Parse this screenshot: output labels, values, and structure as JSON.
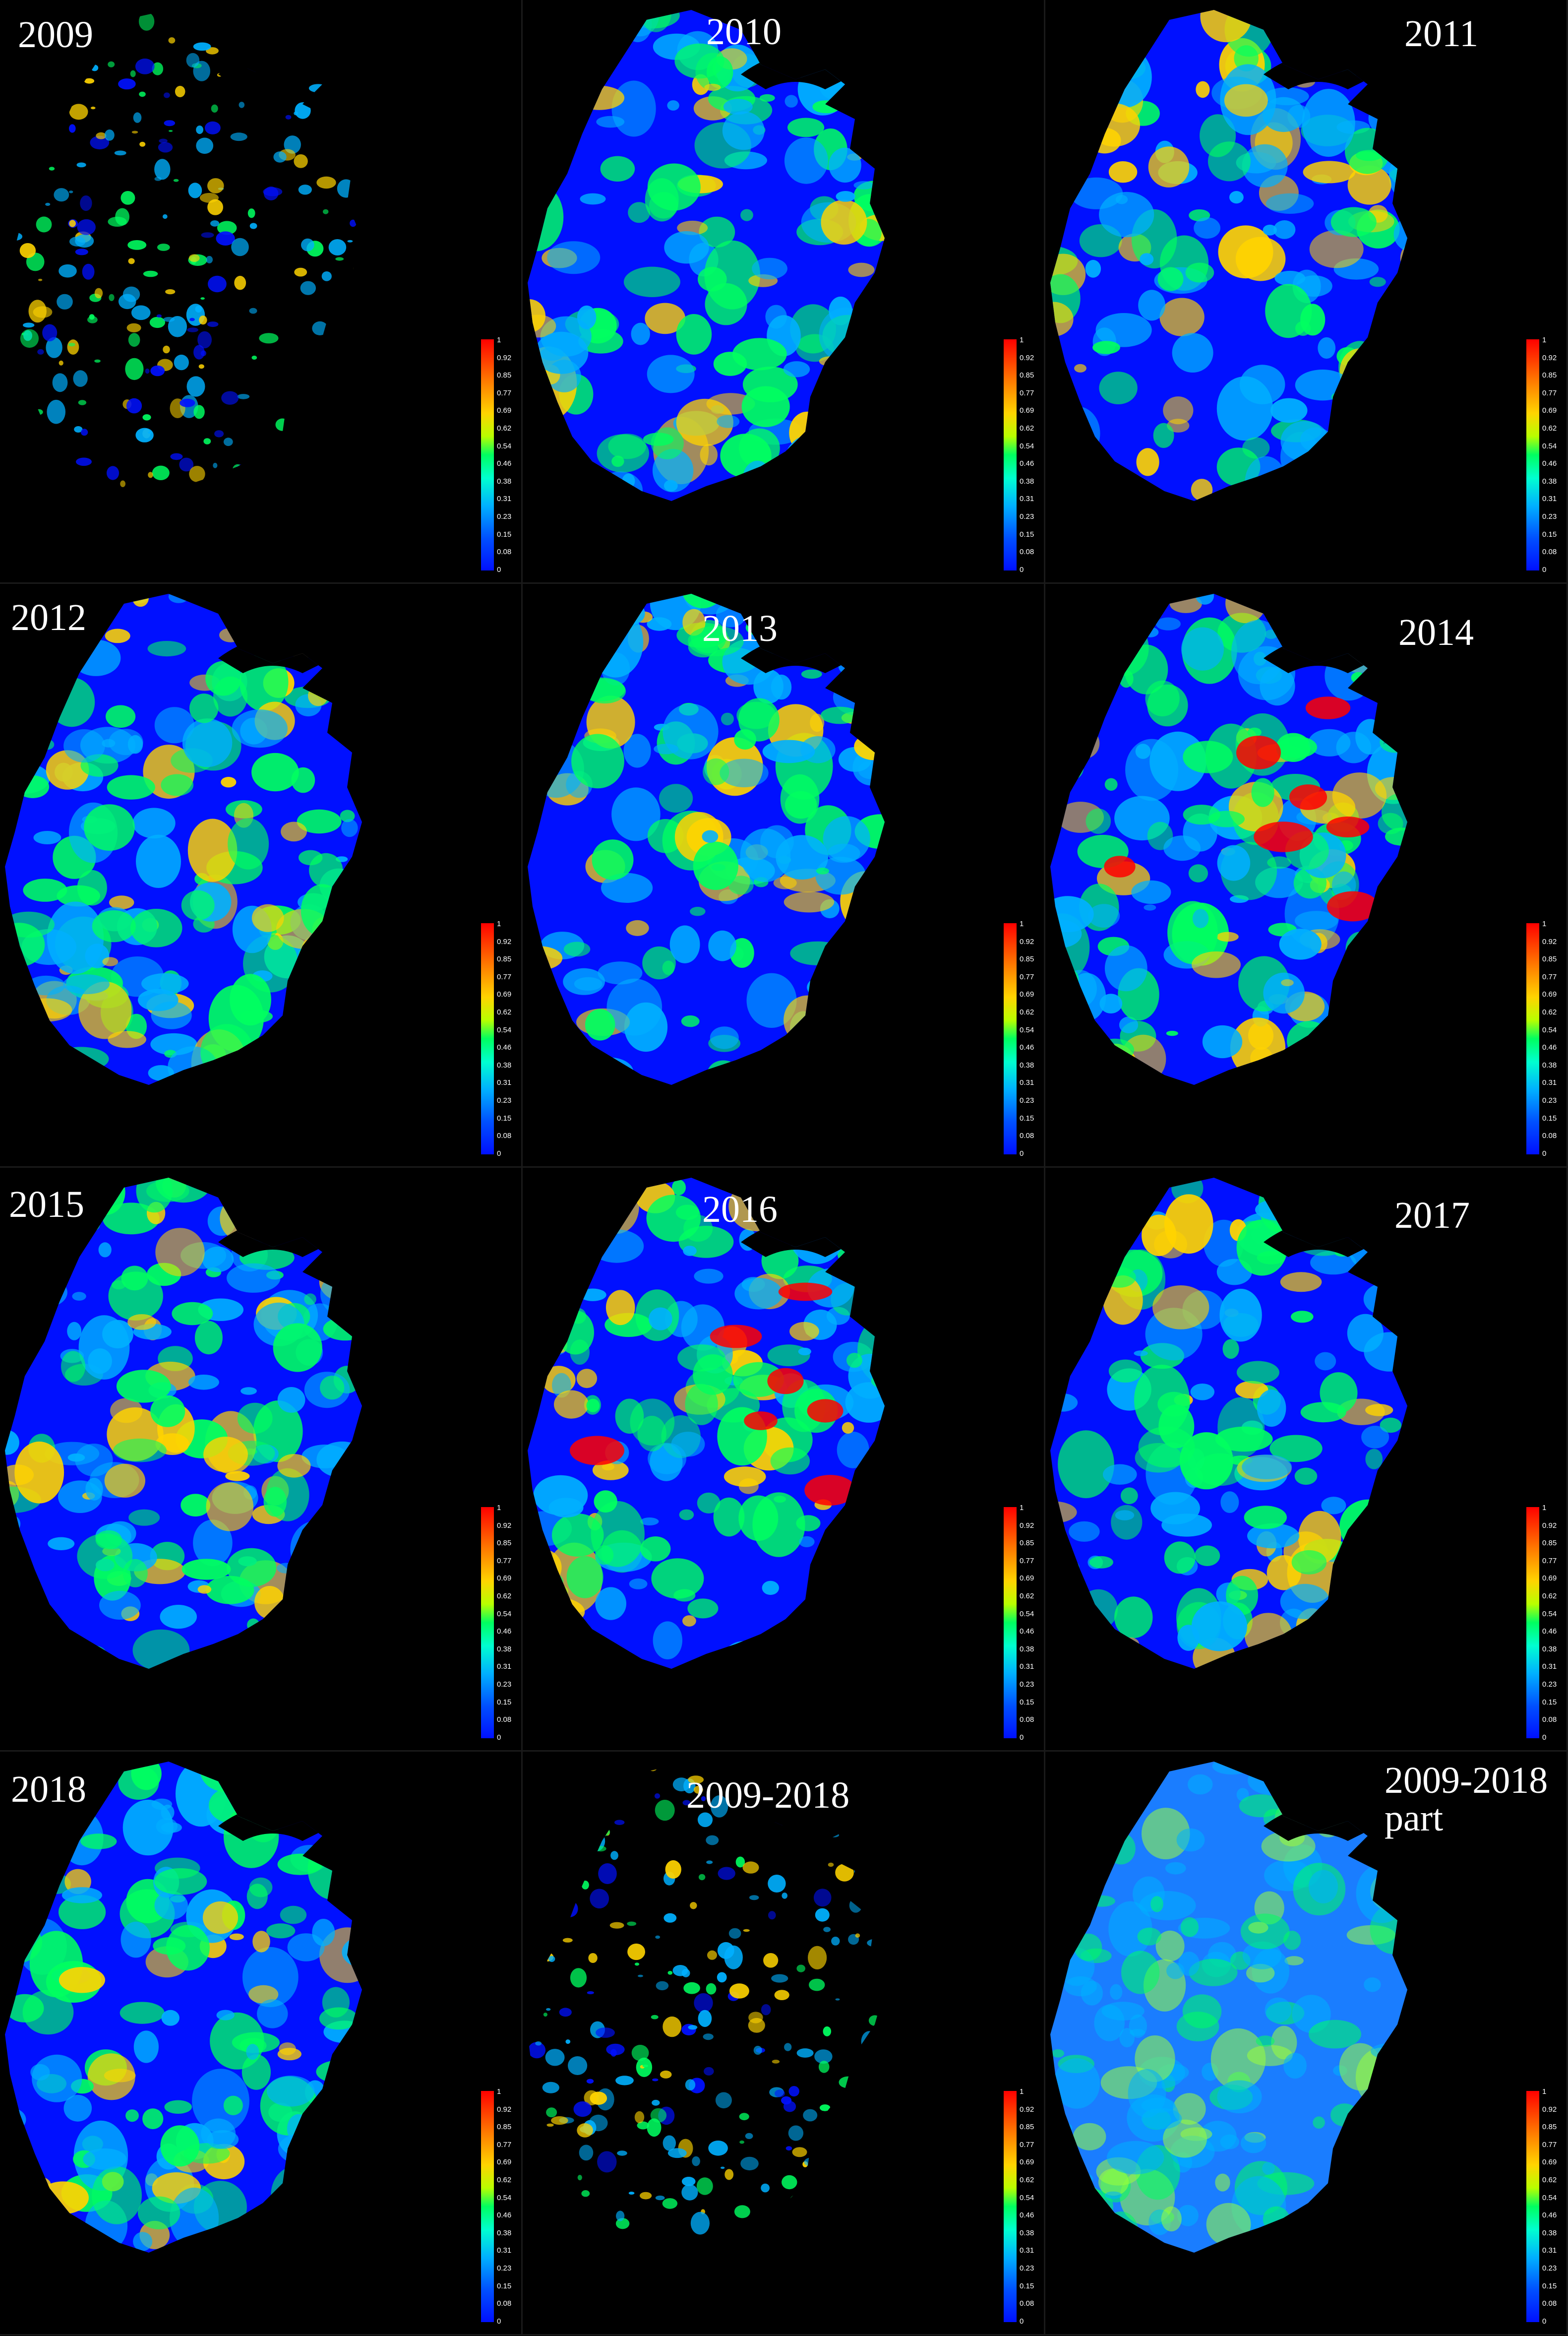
{
  "figure": {
    "legend_ticks": [
      "1",
      "0.92",
      "0.85",
      "0.77",
      "0.69",
      "0.62",
      "0.54",
      "0.46",
      "0.38",
      "0.31",
      "0.23",
      "0.15",
      "0.08",
      "0"
    ],
    "colors": {
      "background": "#000000",
      "low": "#0010ff",
      "mid_low": "#00b0ff",
      "mid": "#00ff60",
      "mid_high": "#ffd400",
      "high": "#ff0000"
    },
    "panels": [
      {
        "label": "2009",
        "style": "sparse"
      },
      {
        "label": "2010",
        "style": "full"
      },
      {
        "label": "2011",
        "style": "full"
      },
      {
        "label": "2012",
        "style": "full"
      },
      {
        "label": "2013",
        "style": "full"
      },
      {
        "label": "2014",
        "style": "hot"
      },
      {
        "label": "2015",
        "style": "full"
      },
      {
        "label": "2016",
        "style": "hot"
      },
      {
        "label": "2017",
        "style": "full"
      },
      {
        "label": "2018",
        "style": "full"
      },
      {
        "label": "2009-2018",
        "style": "sparse"
      },
      {
        "label": "2009-2018\npart",
        "style": "smooth"
      }
    ]
  }
}
